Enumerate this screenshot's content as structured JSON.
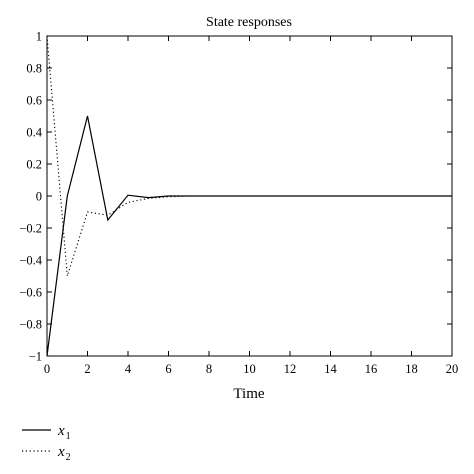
{
  "chart_data": {
    "type": "line",
    "title": "State responses",
    "xlabel": "Time",
    "ylabel": "",
    "xlim": [
      0,
      20
    ],
    "ylim": [
      -1,
      1
    ],
    "x_ticks": [
      0,
      2,
      4,
      6,
      8,
      10,
      12,
      14,
      16,
      18,
      20
    ],
    "y_ticks": [
      -1,
      -0.8,
      -0.6,
      -0.4,
      -0.2,
      0,
      0.2,
      0.4,
      0.6,
      0.8,
      1
    ],
    "x_tick_labels": [
      "0",
      "2",
      "4",
      "6",
      "8",
      "10",
      "12",
      "14",
      "16",
      "18",
      "20"
    ],
    "y_tick_labels": [
      "−1",
      "−0.8",
      "−0.6",
      "−0.4",
      "−0.2",
      "0",
      "0.2",
      "0.4",
      "0.6",
      "0.8",
      "1"
    ],
    "grid": false,
    "legend_placement": "bottom-left, below plot",
    "series": [
      {
        "name": "x1",
        "name_base": "x",
        "name_sub": "1",
        "style": "solid",
        "color": "#000000",
        "x": [
          0,
          1,
          2,
          3,
          4,
          5,
          6,
          7,
          8,
          9,
          10,
          11,
          12,
          13,
          14,
          15,
          16,
          17,
          18,
          19,
          20
        ],
        "y": [
          -1,
          0,
          0.5,
          -0.15,
          0.005,
          -0.01,
          0,
          0,
          0,
          0,
          0,
          0,
          0,
          0,
          0,
          0,
          0,
          0,
          0,
          0,
          0
        ]
      },
      {
        "name": "x2",
        "name_base": "x",
        "name_sub": "2",
        "style": "dotted",
        "color": "#000000",
        "x": [
          0,
          1,
          2,
          3,
          4,
          5,
          6,
          7,
          8,
          9,
          10,
          11,
          12,
          13,
          14,
          15,
          16,
          17,
          18,
          19,
          20
        ],
        "y": [
          1,
          -0.5,
          -0.1,
          -0.12,
          -0.04,
          -0.015,
          -0.005,
          0,
          0,
          0,
          0,
          0,
          0,
          0,
          0,
          0,
          0,
          0,
          0,
          0,
          0
        ]
      }
    ]
  }
}
